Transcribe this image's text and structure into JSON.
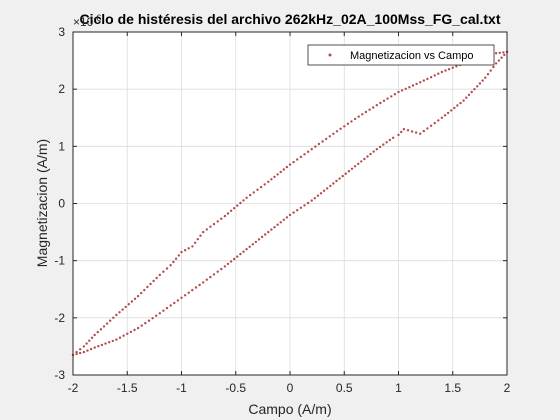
{
  "chart_data": {
    "type": "scatter",
    "title": "Ciclo de histéresis del archivo 262kHz_02A_100Mss_FG_cal.txt",
    "xlabel": "Campo (A/m)",
    "ylabel": "Magnetizacion (A/m)",
    "xlim": [
      -2,
      2
    ],
    "ylim": [
      -3,
      3
    ],
    "y_exponent_label": "×10",
    "y_exponent_value": "-6",
    "xticks": [
      "-2",
      "-1.5",
      "-1",
      "-0.5",
      "0",
      "0.5",
      "1",
      "1.5",
      "2"
    ],
    "yticks": [
      "-3",
      "-2",
      "-1",
      "0",
      "1",
      "2",
      "3"
    ],
    "grid": true,
    "legend_position": "top-right",
    "series": [
      {
        "name": "Magnetizacion vs Campo",
        "color": "#b24c4c",
        "marker": "dot",
        "branches": [
          {
            "label": "upper",
            "x": [
              -2.0,
              -1.9,
              -1.8,
              -1.6,
              -1.4,
              -1.2,
              -1.1,
              -1.0,
              -0.9,
              -0.8,
              -0.6,
              -0.4,
              -0.2,
              0.0,
              0.2,
              0.4,
              0.6,
              0.8,
              1.0,
              1.2,
              1.4,
              1.6,
              1.8,
              1.9,
              2.0
            ],
            "y": [
              -2.65,
              -2.5,
              -2.3,
              -1.95,
              -1.62,
              -1.25,
              -1.08,
              -0.85,
              -0.75,
              -0.5,
              -0.22,
              0.1,
              0.38,
              0.68,
              0.95,
              1.22,
              1.48,
              1.72,
              1.95,
              2.12,
              2.3,
              2.45,
              2.58,
              2.63,
              2.65
            ]
          },
          {
            "label": "lower",
            "x": [
              2.0,
              1.9,
              1.8,
              1.6,
              1.4,
              1.2,
              1.05,
              1.0,
              0.95,
              0.8,
              0.6,
              0.4,
              0.2,
              0.0,
              -0.2,
              -0.4,
              -0.6,
              -0.8,
              -1.0,
              -1.2,
              -1.4,
              -1.6,
              -1.8,
              -1.9,
              -2.0
            ],
            "y": [
              2.65,
              2.45,
              2.2,
              1.8,
              1.5,
              1.22,
              1.3,
              1.2,
              1.15,
              0.95,
              0.65,
              0.35,
              0.05,
              -0.2,
              -0.5,
              -0.8,
              -1.1,
              -1.38,
              -1.65,
              -1.92,
              -2.18,
              -2.38,
              -2.52,
              -2.6,
              -2.65
            ]
          }
        ]
      }
    ]
  }
}
